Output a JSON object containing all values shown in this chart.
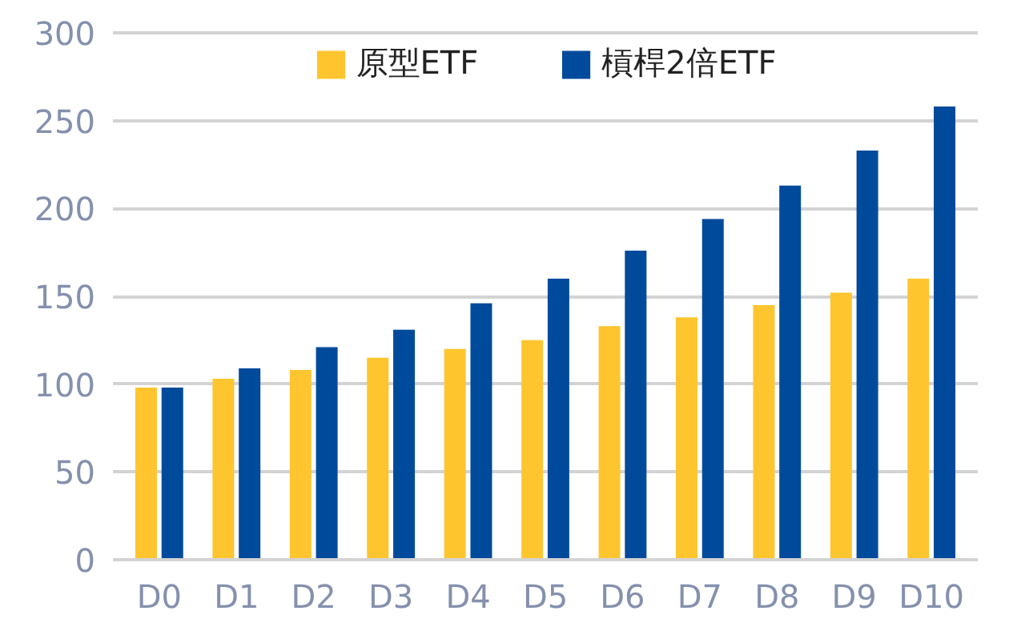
{
  "chart_data": {
    "type": "bar",
    "categories": [
      "D0",
      "D1",
      "D2",
      "D3",
      "D4",
      "D5",
      "D6",
      "D7",
      "D8",
      "D9",
      "D10"
    ],
    "series": [
      {
        "name": "原型ETF",
        "color": "#ffc52e",
        "values": [
          98,
          103,
          108,
          115,
          120,
          125,
          133,
          138,
          145,
          152,
          160
        ]
      },
      {
        "name": "槓桿2倍ETF",
        "color": "#004a9c",
        "values": [
          98,
          109,
          121,
          131,
          146,
          160,
          176,
          194,
          213,
          233,
          258
        ]
      }
    ],
    "ylim": [
      0,
      300
    ],
    "yticks": [
      0,
      50,
      100,
      150,
      200,
      250,
      300
    ],
    "grid": "y",
    "legend": "top"
  }
}
